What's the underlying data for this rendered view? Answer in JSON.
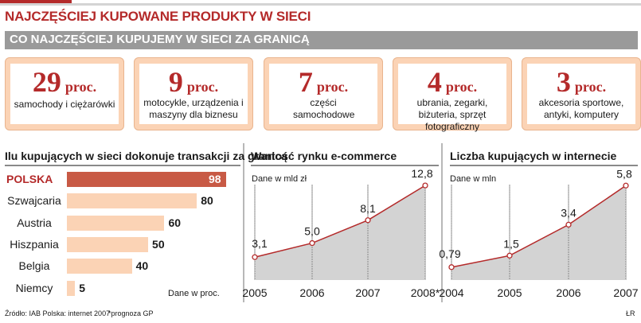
{
  "header": {
    "title": "NAJCZĘŚCIEJ KUPOWANE PRODUKTY W SIECI",
    "subtitle": "CO NAJCZĘŚCIEJ KUPUJEMY W SIECI ZA GRANICĄ"
  },
  "cards": [
    {
      "value": "29",
      "unit": "proc.",
      "desc": "samochody i ciężarówki"
    },
    {
      "value": "9",
      "unit": "proc.",
      "desc": "motocykle, urządzenia i maszyny dla biznesu"
    },
    {
      "value": "7",
      "unit": "proc.",
      "desc": "części samochodowe"
    },
    {
      "value": "4",
      "unit": "proc.",
      "desc": "ubrania, zegarki, biżuteria, sprzęt fotograficzny"
    },
    {
      "value": "3",
      "unit": "proc.",
      "desc": "akcesoria sportowe, antyki, komputery"
    }
  ],
  "panels": {
    "bar_title": "Ilu kupujących w sieci dokonuje transakcji za granicą",
    "bar_unit": "Dane w proc.",
    "ecommerce_title": "Wartość rynku e-commerce",
    "ecommerce_unit": "Dane w mld zł",
    "buyers_title": "Liczba kupujących w internecie",
    "buyers_unit": "Dane w mln"
  },
  "chart_data": [
    {
      "type": "bar",
      "title": "Ilu kupujących w sieci dokonuje transakcji za granicą",
      "categories": [
        "POLSKA",
        "Szwajcaria",
        "Austria",
        "Hiszpania",
        "Belgia",
        "Niemcy"
      ],
      "values": [
        98,
        80,
        60,
        50,
        40,
        5
      ],
      "highlight": "POLSKA",
      "unit": "Dane w proc.",
      "colors": {
        "bar": "#fbd3b5",
        "highlight": "#c85a45"
      }
    },
    {
      "type": "area",
      "title": "Wartość rynku e-commerce",
      "unit": "Dane w mld zł",
      "x": [
        "2005",
        "2006",
        "2007",
        "2008*"
      ],
      "values": [
        3.1,
        5.0,
        8.1,
        12.8
      ],
      "labels": [
        "3,1",
        "5,0",
        "8,1",
        "12,8"
      ],
      "ylim": [
        0,
        14
      ],
      "colors": {
        "line": "#b42a2a",
        "fill": "#d3d3d3"
      }
    },
    {
      "type": "area",
      "title": "Liczba kupujących w internecie",
      "unit": "Dane w mln",
      "x": [
        "2004",
        "2005",
        "2006",
        "2007"
      ],
      "values": [
        0.79,
        1.5,
        3.4,
        5.8
      ],
      "labels": [
        "0,79",
        "1,5",
        "3,4",
        "5,8"
      ],
      "ylim": [
        0,
        6.4
      ],
      "colors": {
        "line": "#b42a2a",
        "fill": "#d3d3d3"
      }
    }
  ],
  "footer": {
    "source": "Źródło: IAB Polska: internet 2007",
    "note": "*prognoza GP",
    "credit": "ŁR"
  }
}
